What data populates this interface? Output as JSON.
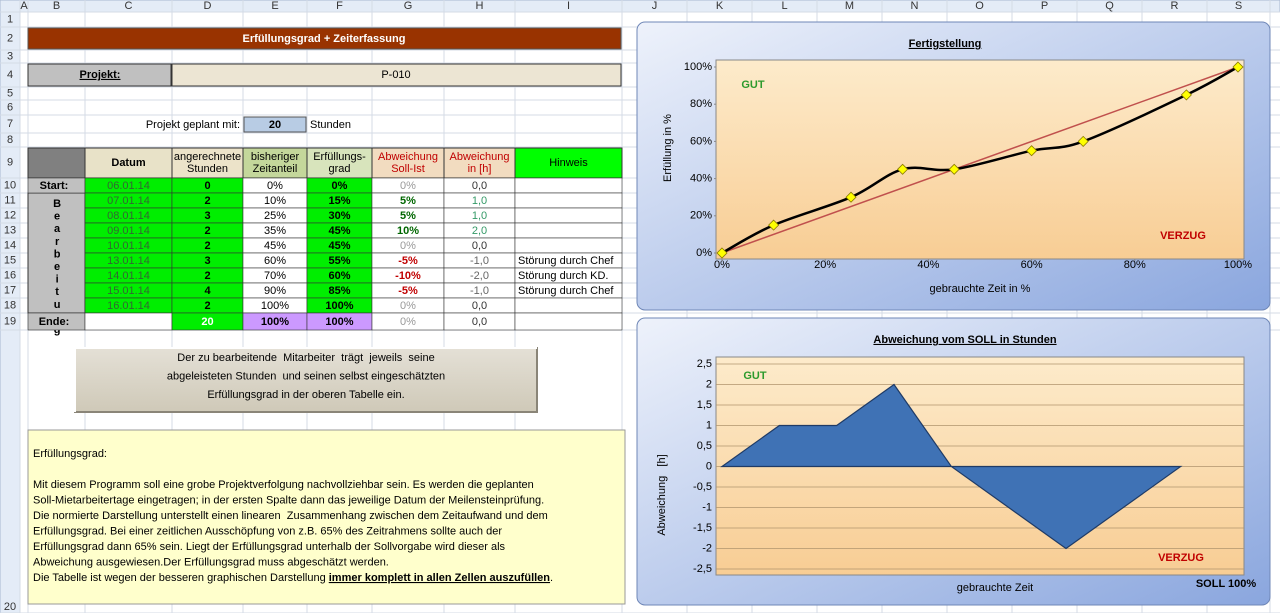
{
  "sheet": {
    "columns": [
      "A",
      "B",
      "C",
      "D",
      "E",
      "F",
      "G",
      "H",
      "I",
      "J",
      "K",
      "L",
      "M",
      "N",
      "O",
      "P",
      "Q",
      "R",
      "S"
    ],
    "row_numbers": [
      "1",
      "2",
      "3",
      "4",
      "5",
      "6",
      "7",
      "8",
      "9",
      "10",
      "11",
      "12",
      "13",
      "14",
      "15",
      "16",
      "17",
      "18",
      "19",
      "20"
    ]
  },
  "form": {
    "title": "Erfüllungsgrad + Zeiterfassung",
    "project_label": "Projekt:",
    "project_value": "P-010",
    "planned_label": "Projekt geplant mit:",
    "planned_hours": "20",
    "planned_unit": "Stunden"
  },
  "table": {
    "headers": [
      [
        "Datum"
      ],
      [
        "angerechnete",
        "Stunden"
      ],
      [
        "bisheriger",
        "Zeitanteil"
      ],
      [
        "Erfüllungs-",
        "grad"
      ],
      [
        "Abweichung",
        "Soll-Ist"
      ],
      [
        "Abweichung",
        "in [h]"
      ],
      [
        "Hinweis"
      ]
    ],
    "side_label": "Bearbeitung",
    "rows": [
      [
        "Start:",
        "06.01.14",
        "0",
        "0%",
        "0%",
        "0%",
        "0,0",
        null
      ],
      [
        null,
        "07.01.14",
        "2",
        "10%",
        "15%",
        "5%",
        "1,0",
        null
      ],
      [
        null,
        "08.01.14",
        "3",
        "25%",
        "30%",
        "5%",
        "1,0",
        null
      ],
      [
        null,
        "09.01.14",
        "2",
        "35%",
        "45%",
        "10%",
        "2,0",
        null
      ],
      [
        null,
        "10.01.14",
        "2",
        "45%",
        "45%",
        "0%",
        "0,0",
        null
      ],
      [
        null,
        "13.01.14",
        "3",
        "60%",
        "55%",
        "-5%",
        "-1,0",
        "Störung durch Chef"
      ],
      [
        null,
        "14.01.14",
        "2",
        "70%",
        "60%",
        "-10%",
        "-2,0",
        "Störung durch KD."
      ],
      [
        null,
        "15.01.14",
        "4",
        "90%",
        "85%",
        "-5%",
        "-1,0",
        "Störung durch Chef"
      ],
      [
        null,
        "16.01.14",
        "2",
        "100%",
        "100%",
        "0%",
        "0,0",
        null
      ],
      [
        "Ende:",
        null,
        "20",
        "100%",
        "100%",
        "0%",
        "0,0",
        null
      ]
    ]
  },
  "info_box": [
    "Der zu bearbeitende  Mitarbeiter  trägt  jeweils  seine",
    "abgeleisteten Stunden  und seinen selbst eingeschätzten",
    "Erfüllungsgrad in der oberen Tabelle ein."
  ],
  "description": {
    "heading": "Erfüllungsgrad:",
    "lines": [
      "Mit diesem Programm soll eine grobe Projektverfolgung nachvollziehbar sein. Es werden die geplanten",
      "Soll-Mietarbeitertage eingetragen; in der ersten Spalte dann das jeweilige Datum der Meilensteinprüfung.",
      "Die normierte Darstellung unterstellt einen linearen  Zusammenhang zwischen dem Zeitaufwand und dem",
      "Erfüllungsgrad. Bei einer zeitlichen Ausschöpfung von z.B. 65% des Zeitrahmens sollte auch der",
      "Erfüllungsgrad dann 65% sein. Liegt der Erfüllungsgrad unterhalb der Sollvorgabe wird dieser als",
      "Abweichung ausgewiesen.Der Erfüllungsgrad muss abgeschätzt werden."
    ],
    "last_line": [
      "Die Tabelle ist wegen der besseren graphischen Darstellung ",
      "immer komplett in allen Zellen auszufüllen",
      "."
    ]
  },
  "chart_data": [
    {
      "type": "line",
      "title": "Fertigstellung",
      "x_label": "gebrauchte Zeit in %",
      "y_label": "Erfüllung in %",
      "annotations": [
        "GUT",
        "VERZUG"
      ],
      "x": [
        0,
        10,
        25,
        35,
        45,
        60,
        70,
        90,
        100
      ],
      "series": [
        {
          "color": "#000000",
          "marker_color": "#ffff00",
          "values": [
            0,
            15,
            30,
            45,
            45,
            55,
            60,
            85,
            100
          ]
        },
        {
          "color": "#c0504d",
          "x": [
            0,
            100
          ],
          "values": [
            0,
            100
          ]
        }
      ],
      "xlim": [
        0,
        100
      ],
      "ylim": [
        0,
        100
      ],
      "xticks": [
        {
          "value": 0,
          "label": "0%"
        },
        {
          "value": 20,
          "label": "20%"
        },
        {
          "value": 40,
          "label": "40%"
        },
        {
          "value": 60,
          "label": "60%"
        },
        {
          "value": 80,
          "label": "80%"
        },
        {
          "value": 100,
          "label": "100%"
        }
      ],
      "yticks": [
        {
          "value": 0,
          "label": "0%"
        },
        {
          "value": 20,
          "label": "20%"
        },
        {
          "value": 40,
          "label": "40%"
        },
        {
          "value": 60,
          "label": "60%"
        },
        {
          "value": 80,
          "label": "80%"
        },
        {
          "value": 100,
          "label": "100%"
        }
      ],
      "grid": false
    },
    {
      "type": "area",
      "title": "Abweichung vom SOLL in Stunden",
      "x_label": "gebrauchte Zeit",
      "y_label": "Abweichung   [h]",
      "annotations": [
        "GUT",
        "VERZUG",
        "SOLL 100%"
      ],
      "values": [
        0,
        1,
        1,
        2,
        0,
        -1,
        -2,
        -1,
        0
      ],
      "color": "#3f72b5",
      "ylim": [
        -2.5,
        2.5
      ],
      "yticks": [
        {
          "value": 2.5,
          "label": "2,5"
        },
        2,
        {
          "value": 1.5,
          "label": "1,5"
        },
        1,
        {
          "value": 0.5,
          "label": "0,5"
        },
        0,
        {
          "value": -0.5,
          "label": "-0,5"
        },
        -1,
        {
          "value": -1.5,
          "label": "-1,5"
        },
        -2,
        {
          "value": -2.5,
          "label": "-2,5"
        }
      ],
      "grid": true
    }
  ]
}
